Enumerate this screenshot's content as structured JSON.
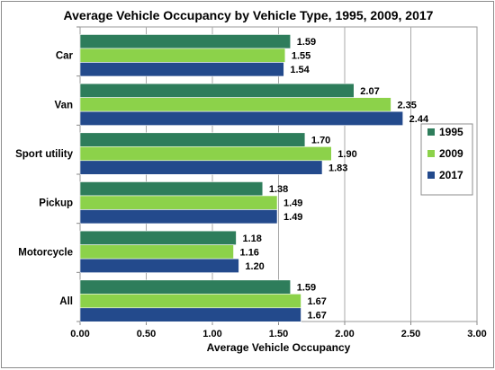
{
  "chart_data": {
    "type": "bar",
    "orientation": "horizontal",
    "title": "Average Vehicle Occupancy by Vehicle Type, 1995, 2009, 2017",
    "xlabel": "Average Vehicle Occupancy",
    "ylabel": "",
    "categories": [
      "Car",
      "Van",
      "Sport utility",
      "Pickup",
      "Motorcycle",
      "All"
    ],
    "series": [
      {
        "name": "1995",
        "color": "#2e7d5b",
        "values": [
          1.59,
          2.07,
          1.7,
          1.38,
          1.18,
          1.59
        ]
      },
      {
        "name": "2009",
        "color": "#8cd24a",
        "values": [
          1.55,
          2.35,
          1.9,
          1.49,
          1.16,
          1.67
        ]
      },
      {
        "name": "2017",
        "color": "#234a8c",
        "values": [
          1.54,
          2.44,
          1.83,
          1.49,
          1.2,
          1.67
        ]
      }
    ],
    "xlim": [
      0,
      3
    ],
    "xticks": [
      "0.00",
      "0.50",
      "1.00",
      "1.50",
      "2.00",
      "2.50",
      "3.00"
    ],
    "grid": true,
    "legend_position": "right"
  }
}
